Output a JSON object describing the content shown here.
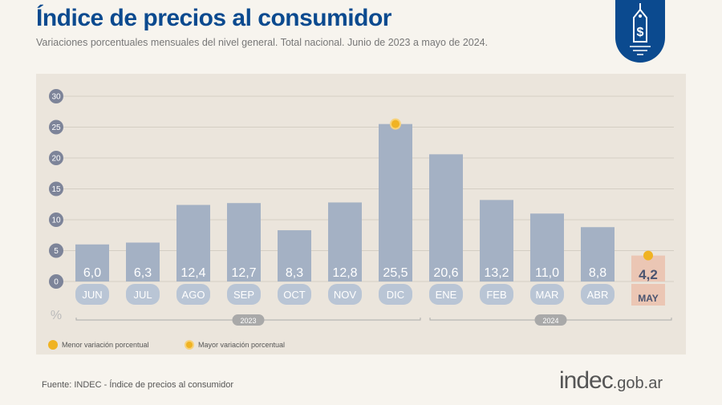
{
  "header": {
    "title": "Índice de precios al consumidor",
    "subtitle": "Variaciones porcentuales mensuales del nivel general. Total nacional. Junio de 2023 a mayo de 2024.",
    "icon": "price-tag-dollar-icon"
  },
  "chart_data": {
    "type": "bar",
    "categories": [
      "JUN",
      "JUL",
      "AGO",
      "SEP",
      "OCT",
      "NOV",
      "DIC",
      "ENE",
      "FEB",
      "MAR",
      "ABR",
      "MAY"
    ],
    "values": [
      6.0,
      6.3,
      12.4,
      12.7,
      8.3,
      12.8,
      25.5,
      20.6,
      13.2,
      11.0,
      8.8,
      4.2
    ],
    "value_labels": [
      "6,0",
      "6,3",
      "12,4",
      "12,7",
      "8,3",
      "12,8",
      "25,5",
      "20,6",
      "13,2",
      "11,0",
      "8,8",
      "4,2"
    ],
    "ylim": [
      0,
      30
    ],
    "yticks": [
      0,
      5,
      10,
      15,
      20,
      25,
      30
    ],
    "ylabel": "%",
    "grid": true,
    "years": [
      {
        "label": "2023",
        "from": "JUN",
        "to": "DIC"
      },
      {
        "label": "2024",
        "from": "ENE",
        "to": "MAY"
      }
    ],
    "highlight": {
      "min": "MAY",
      "max": "DIC"
    },
    "legend": [
      {
        "label": "Menor variación porcentual"
      },
      {
        "label": "Mayor variación porcentual"
      }
    ],
    "legend_placement": "bottom-left",
    "colors": {
      "bar": "#a4b1c4",
      "label_pill": "#b9c5d5",
      "highlight_bar": "#ebc6b4",
      "marker": "#f0b323",
      "tick_badge": "#7d8499"
    }
  },
  "footer": {
    "source": "Fuente: INDEC - Índice de precios al consumidor",
    "logo_main": "indec",
    "logo_suffix": ".gob.ar"
  }
}
